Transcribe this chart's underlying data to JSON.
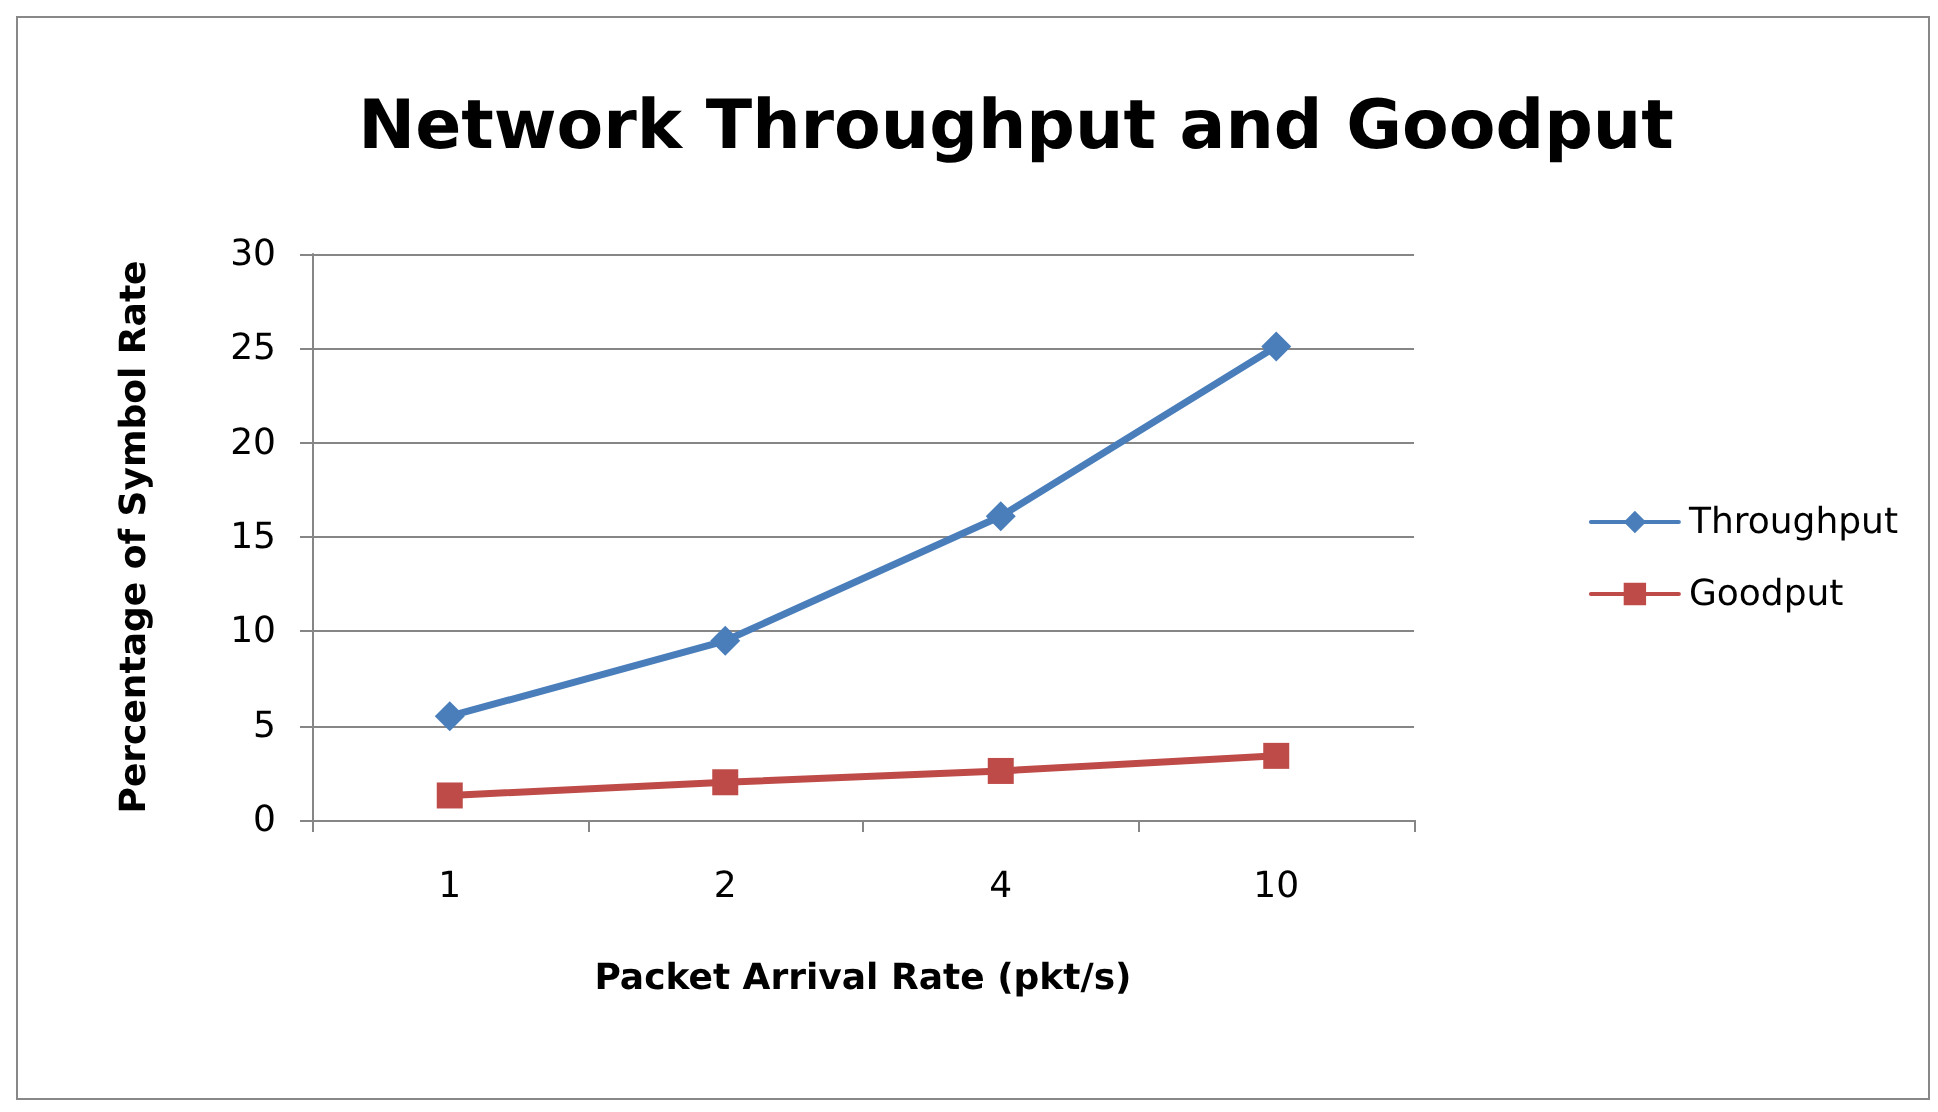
{
  "chart_data": {
    "type": "line",
    "title": "Network Throughput and Goodput",
    "xlabel": "Packet Arrival Rate (pkt/s)",
    "ylabel": "Percentage of Symbol Rate",
    "categories": [
      "1",
      "2",
      "4",
      "10"
    ],
    "series": [
      {
        "name": "Throughput",
        "color": "#4a7ebb",
        "marker": "diamond",
        "values": [
          5.5,
          9.5,
          16.1,
          25.1
        ]
      },
      {
        "name": "Goodput",
        "color": "#be4b48",
        "marker": "square",
        "values": [
          1.3,
          2.0,
          2.6,
          3.4
        ]
      }
    ],
    "ylim": [
      0,
      30
    ],
    "yticks": [
      0,
      5,
      10,
      15,
      20,
      25,
      30
    ],
    "grid": "y",
    "legend": "right",
    "line_style": "solid"
  }
}
